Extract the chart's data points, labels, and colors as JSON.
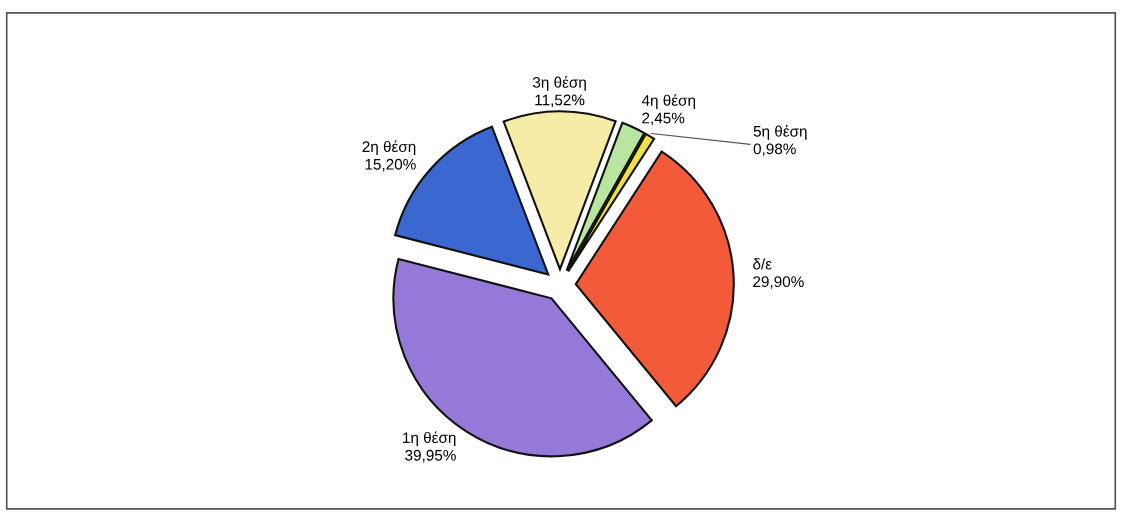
{
  "chart_data": {
    "type": "pie",
    "categories": [
      "1η θέση",
      "2η θέση",
      "3η θέση",
      "4η θέση",
      "5η θέση",
      "δ/ε"
    ],
    "values": [
      39.95,
      15.2,
      11.52,
      2.45,
      0.98,
      29.9
    ],
    "value_labels": [
      "39,95%",
      "15,20%",
      "11,52%",
      "2,45%",
      "0,98%",
      "29,90%"
    ],
    "colors": [
      "#9479d8",
      "#3a68d0",
      "#f6eca8",
      "#b8e6a0",
      "#f0e040",
      "#f25a3a"
    ]
  }
}
